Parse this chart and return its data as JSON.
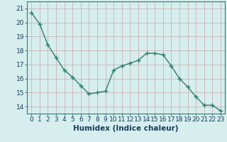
{
  "x": [
    0,
    1,
    2,
    3,
    4,
    5,
    6,
    7,
    8,
    9,
    10,
    11,
    12,
    13,
    14,
    15,
    16,
    17,
    18,
    19,
    20,
    21,
    22,
    23
  ],
  "y": [
    20.7,
    19.9,
    18.4,
    17.5,
    16.6,
    16.1,
    15.5,
    14.9,
    15.0,
    15.1,
    16.6,
    16.9,
    17.1,
    17.3,
    17.8,
    17.8,
    17.7,
    16.9,
    16.0,
    15.4,
    14.7,
    14.1,
    14.1,
    13.7
  ],
  "line_color": "#2e7d6e",
  "marker": "+",
  "marker_size": 4,
  "marker_color": "#2e7d6e",
  "bg_color": "#d6eeee",
  "grid_color": "#c8a8a8",
  "xlabel": "Humidex (Indice chaleur)",
  "ylim": [
    13.5,
    21.5
  ],
  "xlim": [
    -0.5,
    23.5
  ],
  "yticks": [
    14,
    15,
    16,
    17,
    18,
    19,
    20,
    21
  ],
  "xticks": [
    0,
    1,
    2,
    3,
    4,
    5,
    6,
    7,
    8,
    9,
    10,
    11,
    12,
    13,
    14,
    15,
    16,
    17,
    18,
    19,
    20,
    21,
    22,
    23
  ],
  "linewidth": 1.0,
  "xlabel_fontsize": 7.5,
  "tick_fontsize": 6.5,
  "tick_color": "#1a3a5c",
  "xlabel_color": "#1a3a5c"
}
